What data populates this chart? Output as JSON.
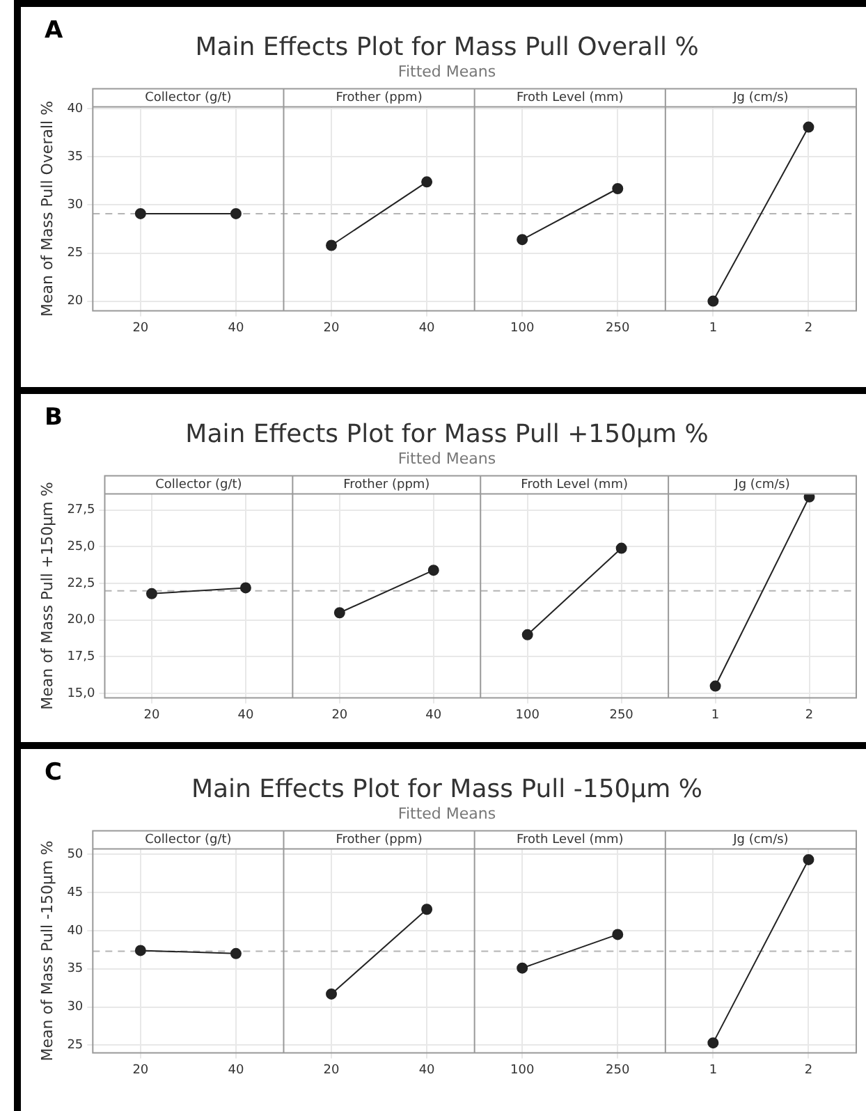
{
  "chart_data": [
    {
      "type": "line",
      "title": "Main Effects Plot for Mass Pull Overall %",
      "subtitle": "Fitted Means",
      "ylabel": "Mean of Mass Pull Overall %",
      "categories": [
        "20",
        "40",
        "20",
        "40",
        "100",
        "250",
        "1",
        "2"
      ],
      "series": [
        {
          "color": "#222222",
          "values": [
            29.1,
            29.1,
            null,
            null,
            null,
            null,
            null,
            null
          ]
        },
        {
          "color": "#222222",
          "values": [
            null,
            null,
            25.8,
            32.4,
            null,
            null,
            null,
            null
          ]
        },
        {
          "color": "#222222",
          "values": [
            null,
            null,
            null,
            null,
            26.4,
            31.7,
            null,
            null
          ]
        },
        {
          "color": "#222222",
          "values": [
            null,
            null,
            null,
            null,
            null,
            null,
            20.0,
            38.1
          ]
        }
      ],
      "ylim": [
        19,
        40.2
      ],
      "yticks": [
        20,
        25,
        30,
        35,
        40
      ],
      "grid": true,
      "legend": false,
      "marker": "circle",
      "line_style": "solid",
      "ref_lines": [
        {
          "axis": "y",
          "value": 29.1,
          "color": "#b4b4b4",
          "line_style": "dashed"
        }
      ],
      "annotations": [
        "A",
        "Collector (g/t)",
        "Frother (ppm)",
        "Froth Level (mm)",
        "Jg (cm/s)"
      ]
    },
    {
      "type": "line",
      "title": "Main Effects Plot for Mass Pull +150µm %",
      "subtitle": "Fitted Means",
      "ylabel": "Mean of Mass Pull +150µm %",
      "categories": [
        "20",
        "40",
        "20",
        "40",
        "100",
        "250",
        "1",
        "2"
      ],
      "series": [
        {
          "color": "#222222",
          "values": [
            21.8,
            22.2,
            null,
            null,
            null,
            null,
            null,
            null
          ]
        },
        {
          "color": "#222222",
          "values": [
            null,
            null,
            20.5,
            23.4,
            null,
            null,
            null,
            null
          ]
        },
        {
          "color": "#222222",
          "values": [
            null,
            null,
            null,
            null,
            19.0,
            24.9,
            null,
            null
          ]
        },
        {
          "color": "#222222",
          "values": [
            null,
            null,
            null,
            null,
            null,
            null,
            15.5,
            28.4
          ]
        }
      ],
      "ylim": [
        14.7,
        28.6
      ],
      "yticks": [
        {
          "value": 15,
          "label": "15,0"
        },
        {
          "value": 17.5,
          "label": "17,5"
        },
        {
          "value": 20,
          "label": "20,0"
        },
        {
          "value": 22.5,
          "label": "22,5"
        },
        {
          "value": 25,
          "label": "25,0"
        },
        {
          "value": 27.5,
          "label": "27,5"
        }
      ],
      "grid": true,
      "legend": false,
      "marker": "circle",
      "line_style": "solid",
      "ref_lines": [
        {
          "axis": "y",
          "value": 22.0,
          "color": "#b4b4b4",
          "line_style": "dashed"
        }
      ],
      "annotations": [
        "B",
        "Collector (g/t)",
        "Frother (ppm)",
        "Froth Level (mm)",
        "Jg (cm/s)"
      ]
    },
    {
      "type": "line",
      "title": "Main Effects Plot for Mass Pull -150µm %",
      "subtitle": "Fitted Means",
      "ylabel": "Mean of Mass Pull -150µm %",
      "categories": [
        "20",
        "40",
        "20",
        "40",
        "100",
        "250",
        "1",
        "2"
      ],
      "series": [
        {
          "color": "#222222",
          "values": [
            37.4,
            37.0,
            null,
            null,
            null,
            null,
            null,
            null
          ]
        },
        {
          "color": "#222222",
          "values": [
            null,
            null,
            31.7,
            42.8,
            null,
            null,
            null,
            null
          ]
        },
        {
          "color": "#222222",
          "values": [
            null,
            null,
            null,
            null,
            35.1,
            39.5,
            null,
            null
          ]
        },
        {
          "color": "#222222",
          "values": [
            null,
            null,
            null,
            null,
            null,
            null,
            25.3,
            49.3
          ]
        }
      ],
      "ylim": [
        24,
        50.7
      ],
      "yticks": [
        25,
        30,
        35,
        40,
        45,
        50
      ],
      "grid": true,
      "legend": false,
      "marker": "circle",
      "line_style": "solid",
      "ref_lines": [
        {
          "axis": "y",
          "value": 37.3,
          "color": "#b4b4b4",
          "line_style": "dashed"
        }
      ],
      "annotations": [
        "C",
        "Collector (g/t)",
        "Frother (ppm)",
        "Froth Level (mm)",
        "Jg (cm/s)"
      ]
    }
  ]
}
